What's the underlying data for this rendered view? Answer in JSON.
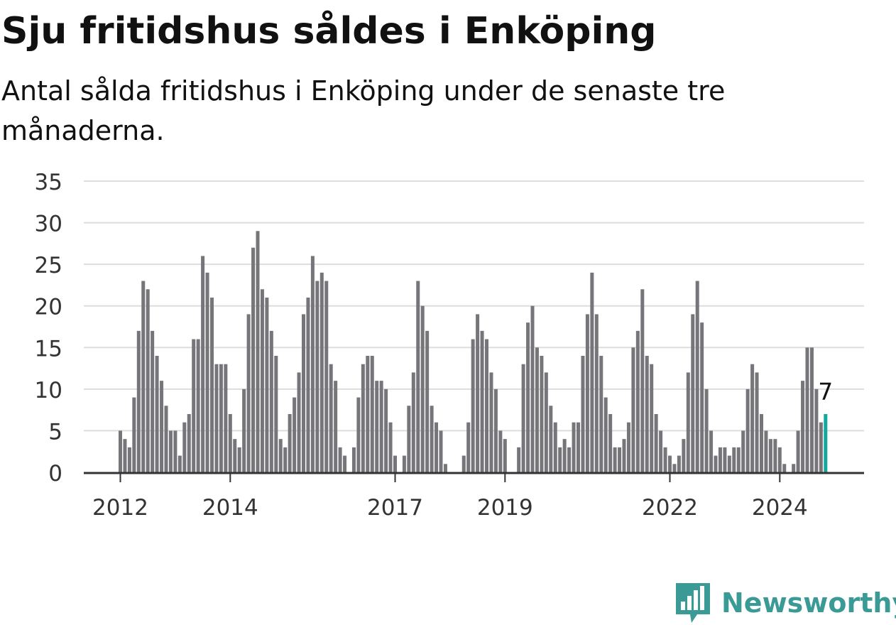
{
  "title": "Sju fritidshus såldes i Enköping",
  "subtitle": "Antal sålda fritidshus i Enköping under de senaste tre månaderna.",
  "brand": {
    "name": "Newsworthy",
    "color": "#3a9a96"
  },
  "colors": {
    "bar": "#75757a",
    "highlight": "#13a89e",
    "grid": "#dddddd",
    "axis": "#333333"
  },
  "chart_data": {
    "type": "bar",
    "title": "Sju fritidshus såldes i Enköping",
    "subtitle": "Antal sålda fritidshus i Enköping under de senaste tre månaderna.",
    "xlabel": "",
    "ylabel": "",
    "ylim": [
      0,
      35
    ],
    "yticks": [
      0,
      5,
      10,
      15,
      20,
      25,
      30,
      35
    ],
    "xtick_labels": [
      {
        "label": "2012",
        "month_index": 0
      },
      {
        "label": "2014",
        "month_index": 24
      },
      {
        "label": "2017",
        "month_index": 60
      },
      {
        "label": "2019",
        "month_index": 84
      },
      {
        "label": "2022",
        "month_index": 120
      },
      {
        "label": "2024",
        "month_index": 144
      }
    ],
    "start": "2012-01",
    "frequency": "monthly",
    "grid": true,
    "values": [
      5,
      4,
      3,
      9,
      17,
      23,
      22,
      17,
      14,
      11,
      8,
      5,
      5,
      2,
      6,
      7,
      16,
      16,
      26,
      24,
      21,
      13,
      13,
      13,
      7,
      4,
      3,
      10,
      19,
      27,
      29,
      22,
      21,
      17,
      14,
      4,
      3,
      7,
      9,
      12,
      19,
      21,
      26,
      23,
      24,
      23,
      13,
      11,
      3,
      2,
      0,
      3,
      9,
      13,
      14,
      14,
      11,
      11,
      10,
      6,
      2,
      0,
      2,
      8,
      12,
      23,
      20,
      17,
      8,
      6,
      5,
      1,
      0,
      0,
      0,
      2,
      6,
      16,
      19,
      17,
      16,
      12,
      10,
      5,
      4,
      0,
      0,
      3,
      13,
      18,
      20,
      15,
      14,
      12,
      8,
      6,
      3,
      4,
      3,
      6,
      6,
      14,
      19,
      24,
      19,
      14,
      9,
      7,
      3,
      3,
      4,
      6,
      15,
      17,
      22,
      14,
      13,
      7,
      5,
      3,
      2,
      1,
      2,
      4,
      12,
      19,
      23,
      18,
      10,
      5,
      2,
      3,
      3,
      2,
      3,
      3,
      5,
      10,
      13,
      12,
      7,
      5,
      4,
      4,
      3,
      1,
      0,
      1,
      5,
      11,
      15,
      15,
      10,
      6,
      7
    ],
    "highlight": {
      "index": 154,
      "label": "7"
    }
  }
}
